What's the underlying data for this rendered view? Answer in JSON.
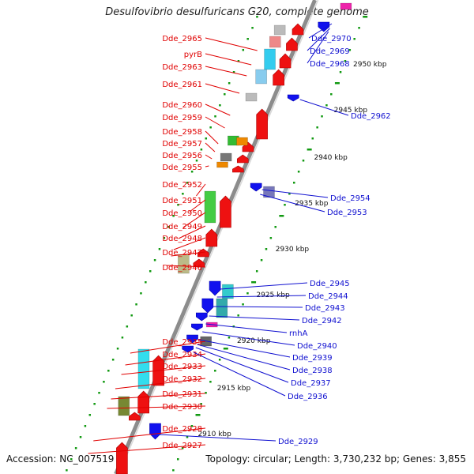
{
  "title": "Desulfovibrio desulfuricans G20, complete genome",
  "footer": {
    "accession": "Accession: NC_007519",
    "summary": "Topology: circular; Length: 3,730,232 bp; Genes: 3,855"
  },
  "colors": {
    "forward_label": "#e00000",
    "reverse_label": "#1010d0",
    "backbone": "#8c8c8c",
    "tick": "#119911"
  },
  "scale_ticks": [
    "2950 kbp",
    "2945 kbp",
    "2940 kbp",
    "2935 kbp",
    "2930 kbp",
    "2925 kbp",
    "2920 kbp",
    "2915 kbp",
    "2910 kbp"
  ],
  "forward_labels": [
    "Dde_2965",
    "pyrB",
    "Dde_2963",
    "Dde_2961",
    "Dde_2960",
    "Dde_2959",
    "Dde_2958",
    "Dde_2957",
    "Dde_2956",
    "Dde_2955",
    "Dde_2952",
    "Dde_2951",
    "Dde_2950",
    "Dde_2949",
    "Dde_2948",
    "Dde_2947",
    "Dde_2946",
    "Dde_2935",
    "Dde_2934",
    "Dde_2933",
    "Dde_2932",
    "Dde_2931",
    "Dde_2930",
    "Dde_2928",
    "Dde_2927"
  ],
  "reverse_labels": [
    "Dde_2970",
    "Dde_2969",
    "Dde_2968",
    "Dde_2962",
    "Dde_2954",
    "Dde_2953",
    "Dde_2945",
    "Dde_2944",
    "Dde_2943",
    "Dde_2942",
    "rnhA",
    "Dde_2940",
    "Dde_2939",
    "Dde_2938",
    "Dde_2937",
    "Dde_2936",
    "Dde_2929"
  ]
}
